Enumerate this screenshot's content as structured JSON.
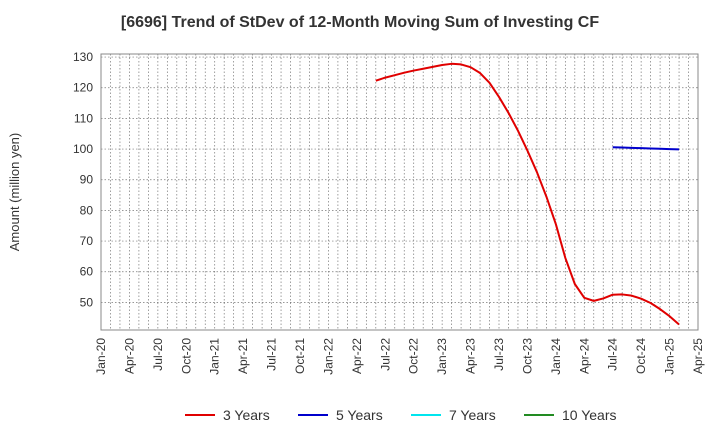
{
  "chart_data": {
    "type": "line",
    "title": "[6696]  Trend of StDev of 12-Month Moving Sum of Investing CF",
    "ylabel": "Amount (million yen)",
    "xlabel": "",
    "ylim": [
      41,
      131
    ],
    "yticks": [
      50,
      60,
      70,
      80,
      90,
      100,
      110,
      120,
      130
    ],
    "xticks": [
      "Jan-20",
      "Apr-20",
      "Jul-20",
      "Oct-20",
      "Jan-21",
      "Apr-21",
      "Jul-21",
      "Oct-21",
      "Jan-22",
      "Apr-22",
      "Jul-22",
      "Oct-22",
      "Jan-23",
      "Apr-23",
      "Jul-23",
      "Oct-23",
      "Jan-24",
      "Apr-24",
      "Jul-24",
      "Oct-24",
      "Jan-25",
      "Apr-25"
    ],
    "grid": true,
    "legend_position": "bottom",
    "series": [
      {
        "name": "3 Years",
        "color": "#e00000",
        "points": [
          [
            "2022-06",
            122.3
          ],
          [
            "2022-07",
            123.3
          ],
          [
            "2022-08",
            124.1
          ],
          [
            "2022-09",
            124.9
          ],
          [
            "2022-10",
            125.6
          ],
          [
            "2022-11",
            126.2
          ],
          [
            "2022-12",
            126.8
          ],
          [
            "2023-01",
            127.4
          ],
          [
            "2023-02",
            127.8
          ],
          [
            "2023-03",
            127.6
          ],
          [
            "2023-04",
            126.7
          ],
          [
            "2023-05",
            124.8
          ],
          [
            "2023-06",
            121.6
          ],
          [
            "2023-07",
            117.0
          ],
          [
            "2023-08",
            111.8
          ],
          [
            "2023-09",
            106.0
          ],
          [
            "2023-10",
            99.5
          ],
          [
            "2023-11",
            92.5
          ],
          [
            "2023-12",
            84.5
          ],
          [
            "2024-01",
            75.5
          ],
          [
            "2024-02",
            64.5
          ],
          [
            "2024-03",
            56.0
          ],
          [
            "2024-04",
            51.5
          ],
          [
            "2024-05",
            50.5
          ],
          [
            "2024-06",
            51.3
          ],
          [
            "2024-07",
            52.5
          ],
          [
            "2024-08",
            52.6
          ],
          [
            "2024-09",
            52.2
          ],
          [
            "2024-10",
            51.2
          ],
          [
            "2024-11",
            49.8
          ],
          [
            "2024-12",
            47.8
          ],
          [
            "2025-01",
            45.5
          ],
          [
            "2025-02",
            42.8
          ]
        ]
      },
      {
        "name": "5 Years",
        "color": "#0000cc",
        "points": [
          [
            "2024-07",
            100.6
          ],
          [
            "2024-08",
            100.5
          ],
          [
            "2024-09",
            100.4
          ],
          [
            "2024-10",
            100.3
          ],
          [
            "2024-11",
            100.2
          ],
          [
            "2024-12",
            100.1
          ],
          [
            "2025-01",
            100.0
          ],
          [
            "2025-02",
            99.9
          ]
        ]
      },
      {
        "name": "7 Years",
        "color": "#00e5ee",
        "points": []
      },
      {
        "name": "10 Years",
        "color": "#228b22",
        "points": []
      }
    ]
  }
}
